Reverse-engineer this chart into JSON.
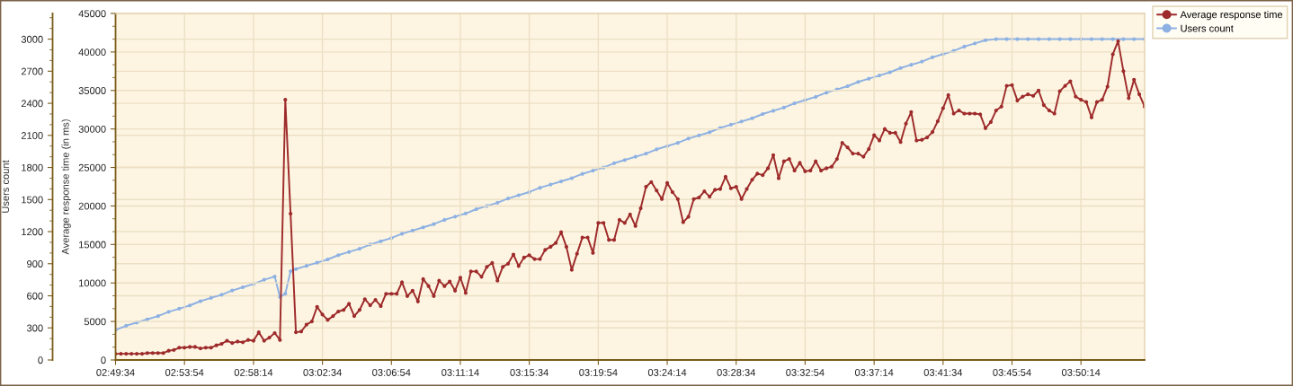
{
  "chart_data": {
    "type": "line",
    "ylabel": "Average response time (in ms)",
    "y2label": "Users count",
    "xlim": [
      2.8261,
      3.9039
    ],
    "xticks": [
      {
        "value": 2.8261,
        "label": "02:49:34"
      },
      {
        "value": 2.8983,
        "label": "02:53:54"
      },
      {
        "value": 2.9706,
        "label": "02:58:14"
      },
      {
        "value": 3.0428,
        "label": "03:02:34"
      },
      {
        "value": 3.115,
        "label": "03:06:54"
      },
      {
        "value": 3.1872,
        "label": "03:11:14"
      },
      {
        "value": 3.2594,
        "label": "03:15:34"
      },
      {
        "value": 3.3317,
        "label": "03:19:54"
      },
      {
        "value": 3.4039,
        "label": "03:24:14"
      },
      {
        "value": 3.4761,
        "label": "03:28:34"
      },
      {
        "value": 3.5483,
        "label": "03:32:54"
      },
      {
        "value": 3.6206,
        "label": "03:37:14"
      },
      {
        "value": 3.6928,
        "label": "03:41:34"
      },
      {
        "value": 3.765,
        "label": "03:45:54"
      },
      {
        "value": 3.8372,
        "label": "03:50:14"
      }
    ],
    "ylim": [
      0,
      45000
    ],
    "yticks": [
      0,
      5000,
      10000,
      15000,
      20000,
      25000,
      30000,
      35000,
      40000,
      45000
    ],
    "y2lim": [
      0,
      3240
    ],
    "y2ticks": [
      0,
      300,
      600,
      900,
      1200,
      1500,
      1800,
      2100,
      2400,
      2700,
      3000
    ],
    "grid": true,
    "legend": "top right",
    "marker": "circle",
    "line_style": "solid",
    "series": [
      {
        "name": "Average response time",
        "color": "#9e2b2b",
        "axis": "y",
        "x": [
          2.8261,
          2.8317,
          2.8372,
          2.8428,
          2.8483,
          2.8539,
          2.8594,
          2.865,
          2.8706,
          2.8761,
          2.8817,
          2.8872,
          2.8928,
          2.8983,
          2.9039,
          2.9094,
          2.915,
          2.9206,
          2.9261,
          2.9317,
          2.9372,
          2.9428,
          2.9483,
          2.9539,
          2.9594,
          2.965,
          2.9706,
          2.9761,
          2.9817,
          2.9872,
          2.9928,
          2.9983,
          3.0039,
          3.0094,
          3.015,
          3.0206,
          3.0261,
          3.0317,
          3.0372,
          3.0428,
          3.0483,
          3.0539,
          3.0594,
          3.065,
          3.0706,
          3.0761,
          3.0817,
          3.0872,
          3.0928,
          3.0983,
          3.1039,
          3.1094,
          3.115,
          3.1206,
          3.1261,
          3.1317,
          3.1372,
          3.1428,
          3.1483,
          3.1539,
          3.1594,
          3.165,
          3.1706,
          3.1761,
          3.1817,
          3.1872,
          3.1928,
          3.1983,
          3.2039,
          3.2094,
          3.215,
          3.2206,
          3.2261,
          3.2317,
          3.2372,
          3.2428,
          3.2483,
          3.2539,
          3.2594,
          3.265,
          3.2706,
          3.2761,
          3.2817,
          3.2872,
          3.2928,
          3.2983,
          3.3039,
          3.3094,
          3.315,
          3.3206,
          3.3261,
          3.3317,
          3.3372,
          3.3428,
          3.3483,
          3.3539,
          3.3594,
          3.365,
          3.3706,
          3.3761,
          3.3817,
          3.3872,
          3.3928,
          3.3983,
          3.4039,
          3.4094,
          3.415,
          3.4206,
          3.4261,
          3.4317,
          3.4372,
          3.4428,
          3.4483,
          3.4539,
          3.4594,
          3.465,
          3.4706,
          3.4761,
          3.4817,
          3.4872,
          3.4928,
          3.4983,
          3.5039,
          3.5094,
          3.515,
          3.5206,
          3.5261,
          3.5317,
          3.5372,
          3.5428,
          3.5483,
          3.5539,
          3.5594,
          3.565,
          3.5706,
          3.5761,
          3.5817,
          3.5872,
          3.5928,
          3.5983,
          3.6039,
          3.6094,
          3.615,
          3.6206,
          3.6261,
          3.6317,
          3.6372,
          3.6428,
          3.6483,
          3.6539,
          3.6594,
          3.665,
          3.6706,
          3.6761,
          3.6817,
          3.6872,
          3.6928,
          3.6983,
          3.7039,
          3.7094,
          3.715,
          3.7206,
          3.7261,
          3.7317,
          3.7372,
          3.7428,
          3.7483,
          3.7539,
          3.7594,
          3.765,
          3.7706,
          3.7761,
          3.7817,
          3.7872,
          3.7928,
          3.7983,
          3.8039,
          3.8094,
          3.815,
          3.8206,
          3.8261,
          3.8317,
          3.8372,
          3.8428,
          3.8483,
          3.8539,
          3.8594,
          3.865,
          3.8706,
          3.8761,
          3.8817,
          3.8872,
          3.8928,
          3.8983,
          3.9039
        ],
        "values": [
          800,
          800,
          800,
          800,
          800,
          800,
          900,
          900,
          900,
          900,
          1200,
          1300,
          1600,
          1600,
          1700,
          1700,
          1500,
          1600,
          1600,
          1900,
          2100,
          2500,
          2200,
          2400,
          2300,
          2600,
          2500,
          3600,
          2500,
          2900,
          3500,
          2600,
          33800,
          19000,
          3600,
          3700,
          4600,
          5000,
          6900,
          5900,
          5200,
          5700,
          6300,
          6500,
          7300,
          5700,
          6500,
          7900,
          7100,
          7800,
          7000,
          8600,
          8600,
          8600,
          10100,
          8300,
          9000,
          7600,
          10500,
          9600,
          8300,
          10300,
          9600,
          10200,
          9000,
          10700,
          8700,
          11500,
          11500,
          10800,
          12100,
          12600,
          10300,
          12100,
          12500,
          13700,
          12200,
          13300,
          13600,
          13100,
          13100,
          14300,
          14700,
          15200,
          16600,
          14700,
          11700,
          13800,
          15900,
          15900,
          13900,
          17800,
          17800,
          15600,
          15600,
          18200,
          17800,
          18900,
          17400,
          19700,
          22500,
          23100,
          22000,
          20900,
          23000,
          21800,
          20900,
          17900,
          18600,
          20900,
          21100,
          21900,
          21200,
          22100,
          22200,
          23800,
          22300,
          22500,
          20900,
          22200,
          23400,
          24200,
          24000,
          24900,
          26600,
          23600,
          25800,
          26100,
          24600,
          25600,
          24500,
          24600,
          25800,
          24600,
          24900,
          25100,
          26100,
          28200,
          27600,
          26800,
          26800,
          26400,
          27400,
          29200,
          28500,
          30000,
          29500,
          29500,
          28300,
          30700,
          32200,
          28500,
          28600,
          28900,
          29600,
          31000,
          32700,
          34400,
          32000,
          32400,
          32000,
          32000,
          32000,
          31900,
          30100,
          30900,
          32400,
          32900,
          35600,
          35700,
          33700,
          34200,
          34500,
          34300,
          35000,
          33100,
          32400,
          32000,
          34900,
          35600,
          36200,
          34200,
          33800,
          33500,
          31500,
          33500,
          33800,
          35500,
          39700,
          41400,
          37500,
          34000,
          36400,
          34500,
          32900
        ]
      },
      {
        "name": "Users count",
        "color": "#8eb1e3",
        "axis": "y2",
        "x": [
          2.8261,
          2.8372,
          2.8483,
          2.8594,
          2.8706,
          2.8817,
          2.8928,
          2.9039,
          2.915,
          2.9261,
          2.9372,
          2.9483,
          2.9594,
          2.9706,
          2.9817,
          2.9928,
          2.9983,
          3.0039,
          3.0094,
          3.015,
          3.0261,
          3.0372,
          3.0483,
          3.0594,
          3.0706,
          3.0817,
          3.0928,
          3.1039,
          3.115,
          3.1261,
          3.1372,
          3.1483,
          3.1594,
          3.1706,
          3.1817,
          3.1928,
          3.2039,
          3.215,
          3.2261,
          3.2372,
          3.2483,
          3.2594,
          3.2706,
          3.2817,
          3.2928,
          3.3039,
          3.315,
          3.3261,
          3.3372,
          3.3483,
          3.3594,
          3.3706,
          3.3817,
          3.3928,
          3.4039,
          3.415,
          3.4261,
          3.4372,
          3.4483,
          3.4594,
          3.4706,
          3.4817,
          3.4928,
          3.5039,
          3.515,
          3.5261,
          3.5372,
          3.5483,
          3.5594,
          3.5706,
          3.5817,
          3.5928,
          3.6039,
          3.615,
          3.6261,
          3.6372,
          3.6483,
          3.6594,
          3.6706,
          3.6817,
          3.6928,
          3.7039,
          3.715,
          3.7261,
          3.7372,
          3.7483,
          3.7594,
          3.7706,
          3.7817,
          3.7928,
          3.8039,
          3.815,
          3.8261,
          3.8372,
          3.8483,
          3.8594,
          3.8706,
          3.8817,
          3.8928,
          3.9039
        ],
        "values": [
          280,
          320,
          350,
          380,
          410,
          450,
          480,
          510,
          550,
          580,
          610,
          650,
          680,
          710,
          750,
          780,
          590,
          620,
          830,
          850,
          880,
          910,
          940,
          980,
          1010,
          1040,
          1080,
          1110,
          1140,
          1180,
          1210,
          1240,
          1270,
          1310,
          1340,
          1370,
          1410,
          1440,
          1470,
          1510,
          1540,
          1570,
          1610,
          1640,
          1670,
          1700,
          1740,
          1770,
          1800,
          1840,
          1870,
          1900,
          1930,
          1970,
          2000,
          2030,
          2070,
          2100,
          2130,
          2170,
          2200,
          2230,
          2260,
          2300,
          2330,
          2360,
          2400,
          2430,
          2460,
          2500,
          2530,
          2560,
          2600,
          2630,
          2660,
          2690,
          2730,
          2760,
          2790,
          2830,
          2860,
          2890,
          2930,
          2960,
          2990,
          3000,
          3000,
          3000,
          3000,
          3000,
          3000,
          3000,
          3000,
          3000,
          3000,
          3000,
          3000,
          3000,
          3000,
          3000
        ]
      }
    ]
  }
}
